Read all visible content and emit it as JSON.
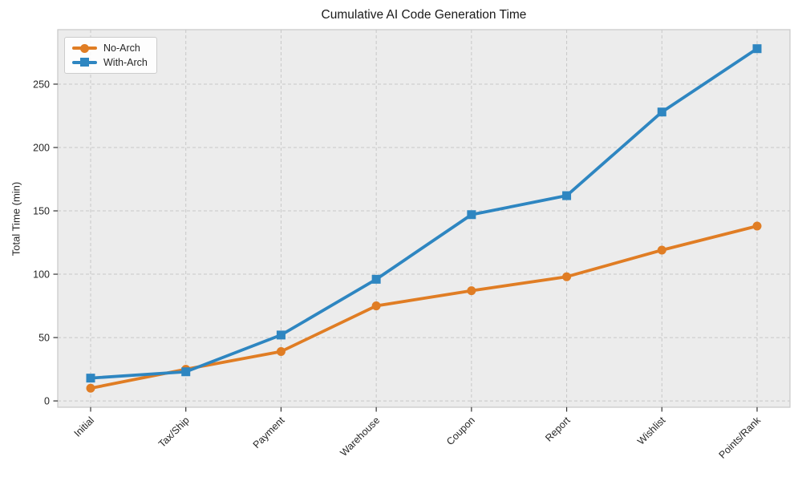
{
  "chart_data": {
    "type": "line",
    "title": "Cumulative AI Code Generation Time",
    "xlabel": "",
    "ylabel": "Total Time (min)",
    "categories": [
      "Initial",
      "Tax/Ship",
      "Payment",
      "Warehouse",
      "Coupon",
      "Report",
      "Wishlist",
      "Points/Rank"
    ],
    "series": [
      {
        "name": "No-Arch",
        "marker": "circle",
        "color": "#e07d24",
        "values": [
          10,
          25,
          39,
          75,
          87,
          98,
          119,
          138
        ]
      },
      {
        "name": "With-Arch",
        "marker": "square",
        "color": "#2e86c1",
        "values": [
          18,
          23,
          52,
          96,
          147,
          162,
          228,
          278
        ]
      }
    ],
    "yticks": [
      0,
      50,
      100,
      150,
      200,
      250
    ],
    "ylim": [
      -5,
      293
    ],
    "grid": "dashed",
    "legend_position": "upper-left",
    "plot_bg": "#ececec",
    "grid_color": "#c7c7c7",
    "spine_color": "#cbcbcb",
    "tick_color": "#333333",
    "text_color": "#262626"
  }
}
